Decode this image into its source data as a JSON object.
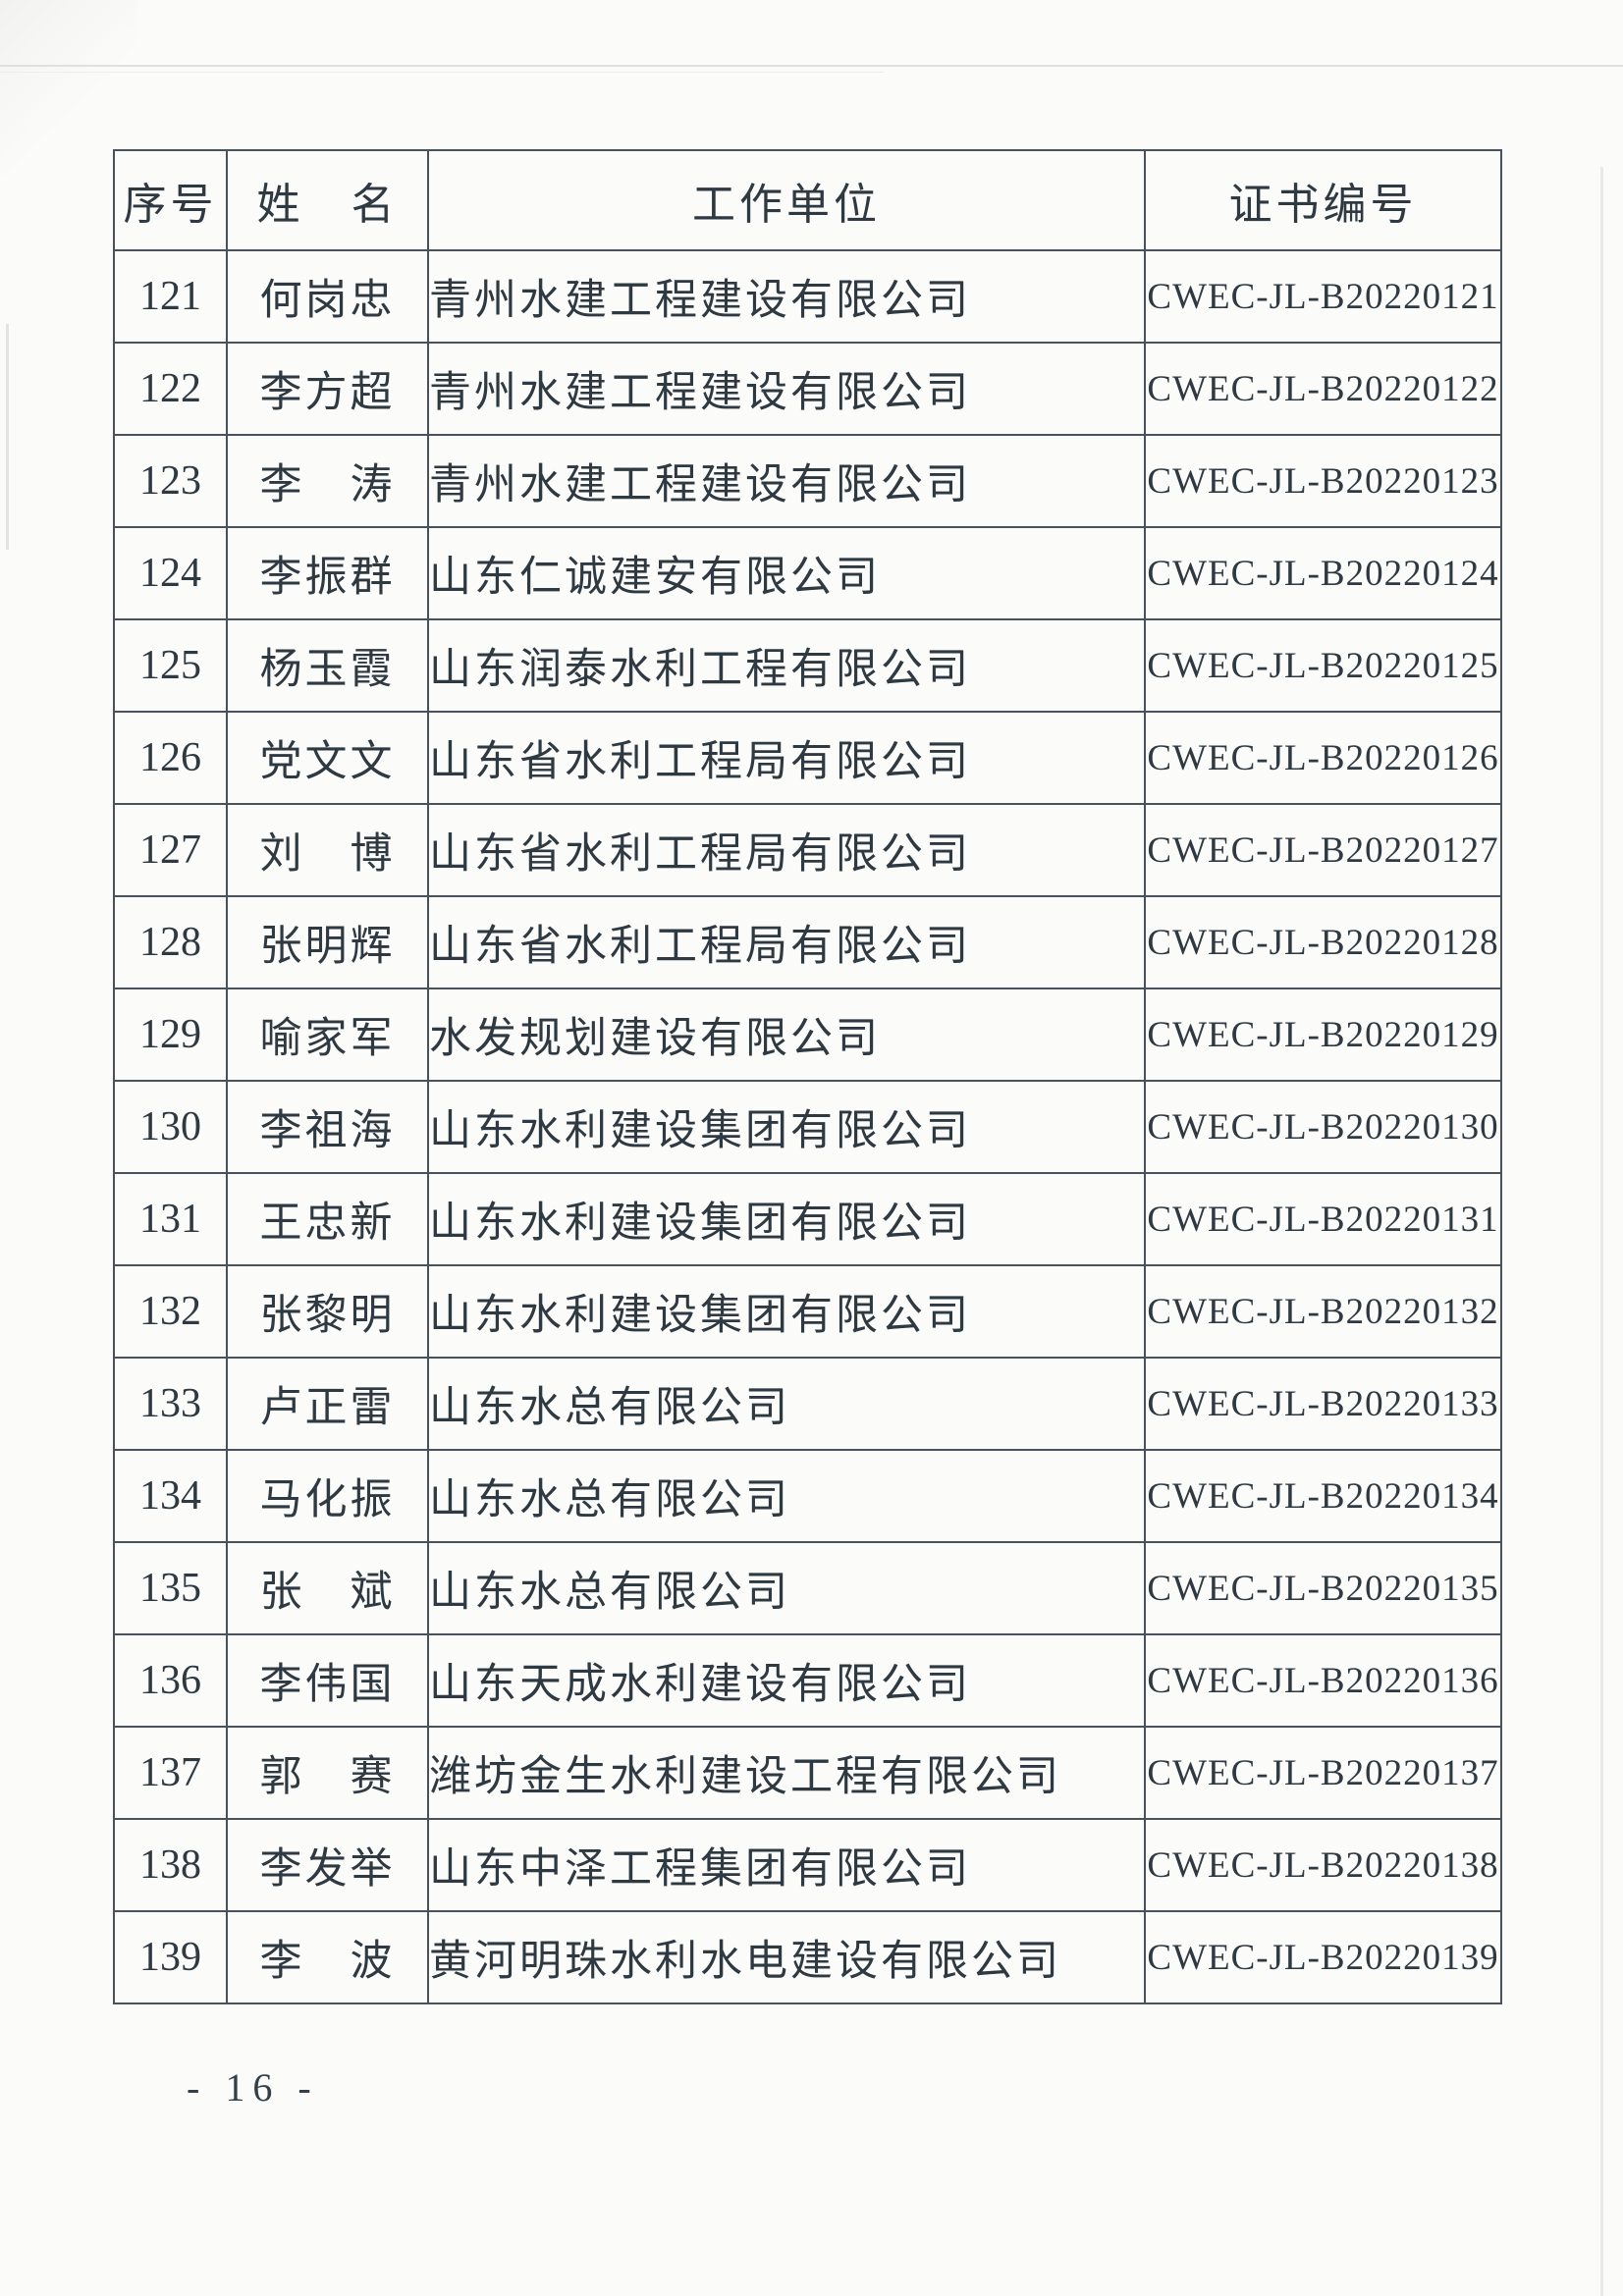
{
  "page": {
    "number_label": "- 16 -"
  },
  "table": {
    "headers": [
      "序号",
      "姓　名",
      "工作单位",
      "证书编号"
    ],
    "rows": [
      {
        "no": "121",
        "name": "何岗忠",
        "company": "青州水建工程建设有限公司",
        "cert": "CWEC-JL-B20220121"
      },
      {
        "no": "122",
        "name": "李方超",
        "company": "青州水建工程建设有限公司",
        "cert": "CWEC-JL-B20220122"
      },
      {
        "no": "123",
        "name": "李　涛",
        "company": "青州水建工程建设有限公司",
        "cert": "CWEC-JL-B20220123"
      },
      {
        "no": "124",
        "name": "李振群",
        "company": "山东仁诚建安有限公司",
        "cert": "CWEC-JL-B20220124"
      },
      {
        "no": "125",
        "name": "杨玉霞",
        "company": "山东润泰水利工程有限公司",
        "cert": "CWEC-JL-B20220125"
      },
      {
        "no": "126",
        "name": "党文文",
        "company": "山东省水利工程局有限公司",
        "cert": "CWEC-JL-B20220126"
      },
      {
        "no": "127",
        "name": "刘　博",
        "company": "山东省水利工程局有限公司",
        "cert": "CWEC-JL-B20220127"
      },
      {
        "no": "128",
        "name": "张明辉",
        "company": "山东省水利工程局有限公司",
        "cert": "CWEC-JL-B20220128"
      },
      {
        "no": "129",
        "name": "喻家军",
        "company": "水发规划建设有限公司",
        "cert": "CWEC-JL-B20220129"
      },
      {
        "no": "130",
        "name": "李祖海",
        "company": "山东水利建设集团有限公司",
        "cert": "CWEC-JL-B20220130"
      },
      {
        "no": "131",
        "name": "王忠新",
        "company": "山东水利建设集团有限公司",
        "cert": "CWEC-JL-B20220131"
      },
      {
        "no": "132",
        "name": "张黎明",
        "company": "山东水利建设集团有限公司",
        "cert": "CWEC-JL-B20220132"
      },
      {
        "no": "133",
        "name": "卢正雷",
        "company": "山东水总有限公司",
        "cert": "CWEC-JL-B20220133"
      },
      {
        "no": "134",
        "name": "马化振",
        "company": "山东水总有限公司",
        "cert": "CWEC-JL-B20220134"
      },
      {
        "no": "135",
        "name": "张　斌",
        "company": "山东水总有限公司",
        "cert": "CWEC-JL-B20220135"
      },
      {
        "no": "136",
        "name": "李伟国",
        "company": "山东天成水利建设有限公司",
        "cert": "CWEC-JL-B20220136"
      },
      {
        "no": "137",
        "name": "郭　赛",
        "company": "潍坊金生水利建设工程有限公司",
        "cert": "CWEC-JL-B20220137"
      },
      {
        "no": "138",
        "name": "李发举",
        "company": "山东中泽工程集团有限公司",
        "cert": "CWEC-JL-B20220138"
      },
      {
        "no": "139",
        "name": "李　波",
        "company": "黄河明珠水利水电建设有限公司",
        "cert": "CWEC-JL-B20220139"
      }
    ]
  }
}
